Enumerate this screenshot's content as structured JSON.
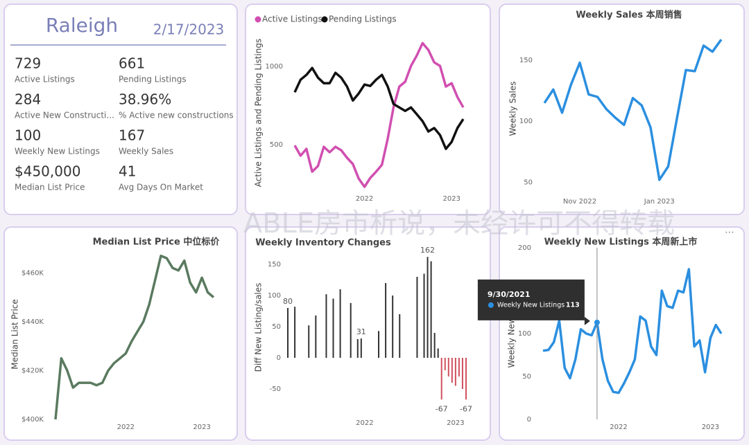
{
  "kpi": {
    "title": "Raleigh",
    "date": "2/17/2023",
    "items": [
      {
        "value": "729",
        "label": "Active Listings"
      },
      {
        "value": "661",
        "label": "Pending Listings"
      },
      {
        "value": "284",
        "label": "Active New Constructi..."
      },
      {
        "value": "38.96%",
        "label": "% Active new constructions"
      },
      {
        "value": "100",
        "label": "Weekly New Listings"
      },
      {
        "value": "167",
        "label": "Weekly Sales"
      },
      {
        "value": "$450,000",
        "label": "Median List Price"
      },
      {
        "value": "41",
        "label": "Avg Days On Market"
      }
    ]
  },
  "watermark": "ABLE房市析说，未经许可不得转载",
  "chart_data": [
    {
      "type": "line",
      "y_label": "Active Listings and Pending Listings",
      "legend": "top-left",
      "categories": [
        null,
        null,
        null,
        null,
        null,
        null,
        null,
        null,
        null,
        null,
        null,
        null,
        "2022",
        null,
        null,
        null,
        null,
        null,
        null,
        null,
        null,
        null,
        null,
        null,
        null,
        null,
        null,
        "2023",
        null,
        null
      ],
      "series": [
        {
          "name": "Active Listings",
          "color": "#d14fb0",
          "values": [
            496,
            430,
            474,
            328,
            364,
            487,
            452,
            487,
            465,
            417,
            377,
            284,
            231,
            288,
            328,
            372,
            540,
            739,
            872,
            903,
            1004,
            1071,
            1150,
            1106,
            1027,
            1004,
            872,
            894,
            805,
            739
          ]
        },
        {
          "name": "Pending Listings",
          "color": "#111111",
          "values": [
            836,
            916,
            947,
            991,
            929,
            894,
            894,
            960,
            929,
            872,
            783,
            828,
            885,
            876,
            916,
            947,
            872,
            761,
            739,
            717,
            739,
            695,
            651,
            585,
            607,
            562,
            474,
            518,
            607,
            664
          ]
        }
      ],
      "ylim": [
        200,
        1200
      ],
      "yticks": [
        500,
        1000
      ]
    },
    {
      "type": "line",
      "title": "Weekly Sales 本周销售",
      "y_label": "Weekly Sales",
      "categories": [
        null,
        null,
        null,
        null,
        "Nov 2022",
        null,
        null,
        null,
        null,
        null,
        null,
        null,
        null,
        "Jan 2023",
        null,
        null,
        null,
        null,
        null,
        null,
        null
      ],
      "series": [
        {
          "name": "Weekly Sales",
          "color": "#2b8fe0",
          "values": [
            115,
            126,
            107,
            130,
            148,
            122,
            120,
            110,
            103,
            97,
            119,
            113,
            95,
            52,
            63,
            103,
            142,
            141,
            162,
            157,
            167
          ]
        }
      ],
      "ylim": [
        40,
        175
      ],
      "yticks": [
        50,
        100,
        150
      ]
    },
    {
      "type": "line",
      "title": "Median List Price  中位标价",
      "y_label": "Median List Price",
      "categories": [
        null,
        null,
        null,
        null,
        null,
        null,
        null,
        null,
        null,
        null,
        null,
        null,
        "2022",
        null,
        null,
        null,
        null,
        null,
        null,
        null,
        null,
        null,
        null,
        null,
        null,
        "2023",
        null,
        null
      ],
      "series": [
        {
          "name": "Median List Price",
          "color": "#5a7a5f",
          "values": [
            400000,
            425000,
            420000,
            413000,
            415000,
            415000,
            415000,
            414000,
            415000,
            420000,
            423000,
            425000,
            427000,
            432000,
            436000,
            440000,
            447000,
            457000,
            467000,
            466000,
            462000,
            461000,
            465000,
            456000,
            452000,
            458000,
            452000,
            450000
          ]
        }
      ],
      "ylim": [
        400000,
        470000
      ],
      "yticks": [
        {
          "value": 400000,
          "label": "$400K"
        },
        {
          "value": 420000,
          "label": "$420K"
        },
        {
          "value": 440000,
          "label": "$440K"
        },
        {
          "value": 460000,
          "label": "$460K"
        }
      ]
    },
    {
      "type": "bar",
      "title": "Weekly Inventory Changes",
      "y_label": "Diff New Listing/sales",
      "color": "#333333",
      "negative_color": "#d0505f",
      "categories": [
        null,
        null,
        null,
        null,
        null,
        null,
        null,
        null,
        null,
        null,
        null,
        null,
        null,
        null,
        null,
        null,
        null,
        null,
        null,
        null,
        null,
        null,
        "2022",
        null,
        null,
        null,
        null,
        null,
        null,
        null,
        null,
        null,
        null,
        null,
        null,
        null,
        null,
        null,
        null,
        null,
        null,
        null,
        null,
        null,
        null,
        null,
        null,
        null,
        "2023",
        null,
        null,
        null
      ],
      "values": [
        80,
        null,
        82,
        null,
        null,
        null,
        52,
        null,
        68,
        null,
        null,
        102,
        null,
        95,
        null,
        110,
        null,
        null,
        88,
        null,
        30,
        31,
        null,
        null,
        null,
        null,
        43,
        null,
        120,
        null,
        100,
        null,
        70,
        null,
        null,
        null,
        null,
        130,
        null,
        135,
        162,
        155,
        40,
        15,
        -67,
        -20,
        -30,
        -40,
        -45,
        -30,
        -50,
        -67
      ],
      "value_labels": [
        "80",
        null,
        null,
        null,
        null,
        null,
        null,
        null,
        null,
        null,
        null,
        null,
        null,
        null,
        null,
        null,
        null,
        null,
        null,
        null,
        null,
        "31",
        null,
        null,
        null,
        null,
        null,
        null,
        null,
        null,
        null,
        null,
        null,
        null,
        null,
        null,
        null,
        null,
        null,
        null,
        "162",
        null,
        null,
        null,
        "-67",
        null,
        null,
        null,
        null,
        null,
        null,
        "-67"
      ],
      "ylim": [
        -80,
        180
      ],
      "yticks": [
        -50,
        0,
        50,
        100,
        150
      ]
    },
    {
      "type": "line",
      "title": "Weekly New Listings  本周新上市",
      "y_label": "Weekly New Listings",
      "categories": [
        null,
        null,
        null,
        null,
        null,
        null,
        null,
        null,
        null,
        null,
        null,
        null,
        null,
        null,
        "2022",
        null,
        null,
        null,
        null,
        null,
        null,
        null,
        null,
        null,
        null,
        null,
        null,
        null,
        null,
        null,
        null,
        "2023",
        null,
        null
      ],
      "series": [
        {
          "name": "Weekly New Listings",
          "color": "#2b8fe0",
          "values": [
            80,
            81,
            90,
            115,
            60,
            48,
            70,
            105,
            100,
            98,
            113,
            70,
            45,
            32,
            31,
            42,
            55,
            70,
            120,
            115,
            85,
            75,
            150,
            132,
            130,
            150,
            148,
            175,
            85,
            92,
            55,
            95,
            110,
            100
          ]
        }
      ],
      "ylim": [
        0,
        200
      ],
      "yticks": [
        0,
        50,
        100,
        150,
        200
      ],
      "tooltip": {
        "index": 10,
        "date": "9/30/2021"
      }
    }
  ]
}
